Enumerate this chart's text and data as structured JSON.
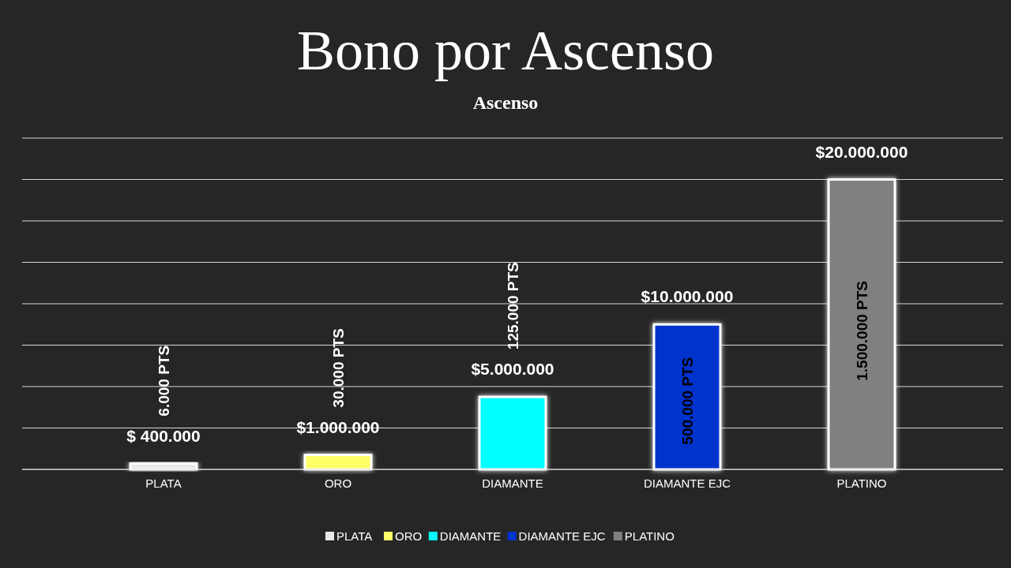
{
  "chart_data": {
    "type": "bar",
    "title": "Bono por Ascenso",
    "subtitle": "Ascenso",
    "categories": [
      "PLATA",
      "ORO",
      "DIAMANTE",
      "DIAMANTE EJC",
      "PLATINO"
    ],
    "values": [
      400000,
      1000000,
      5000000,
      10000000,
      20000000
    ],
    "colors": [
      "#e8e8e8",
      "#ffff66",
      "#00ffff",
      "#0033cc",
      "#808080"
    ],
    "value_labels": [
      "$ 400.000",
      "$1.000.000",
      "$5.000.000",
      "$10.000.000",
      "$20.000.000"
    ],
    "annotations": [
      "6.000 PTS",
      "30.000 PTS",
      "125.000 PTS",
      "500.000 PTS",
      "1.500.000 PTS"
    ],
    "grid": true
  }
}
